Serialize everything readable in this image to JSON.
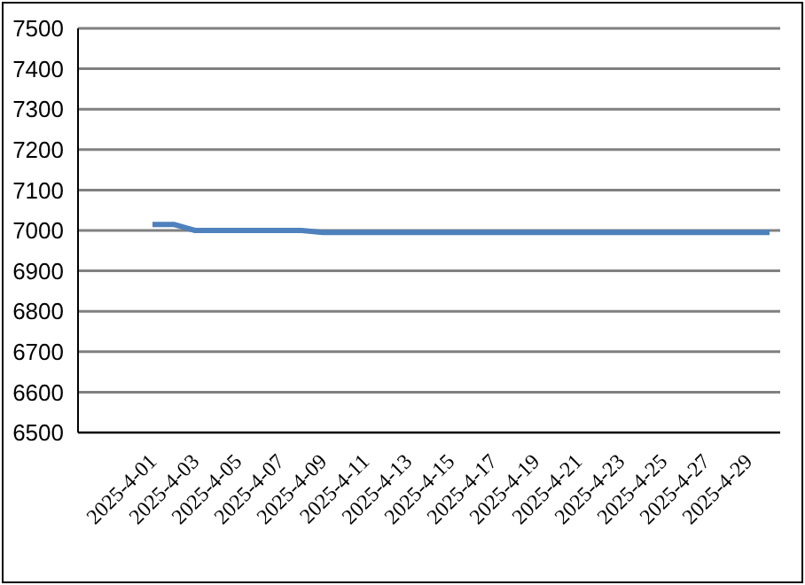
{
  "chart_data": {
    "type": "line",
    "categories": [
      "2025-4-01",
      null,
      "2025-4-03",
      null,
      "2025-4-05",
      null,
      "2025-4-07",
      null,
      "2025-4-09",
      null,
      "2025-4-11",
      null,
      "2025-4-13",
      null,
      "2025-4-15",
      null,
      "2025-4-17",
      null,
      "2025-4-19",
      null,
      "2025-4-21",
      null,
      "2025-4-23",
      null,
      "2025-4-25",
      null,
      "2025-4-27",
      null,
      "2025-4-29",
      null
    ],
    "series": [
      {
        "color": "#4f81bd",
        "values": [
          7015,
          7015,
          7000,
          7000,
          7000,
          7000,
          7000,
          7000,
          6995,
          6995,
          6995,
          6995,
          6995,
          6995,
          6995,
          6995,
          6995,
          6995,
          6995,
          6995,
          6995,
          6995,
          6995,
          6995,
          6995,
          6995,
          6995,
          6995,
          6995,
          6995
        ]
      }
    ],
    "ylim": [
      6500,
      7500
    ],
    "yticks": [
      6500,
      6600,
      6700,
      6800,
      6900,
      7000,
      7100,
      7200,
      7300,
      7400,
      7500
    ],
    "grid": "y",
    "marker": "none"
  }
}
